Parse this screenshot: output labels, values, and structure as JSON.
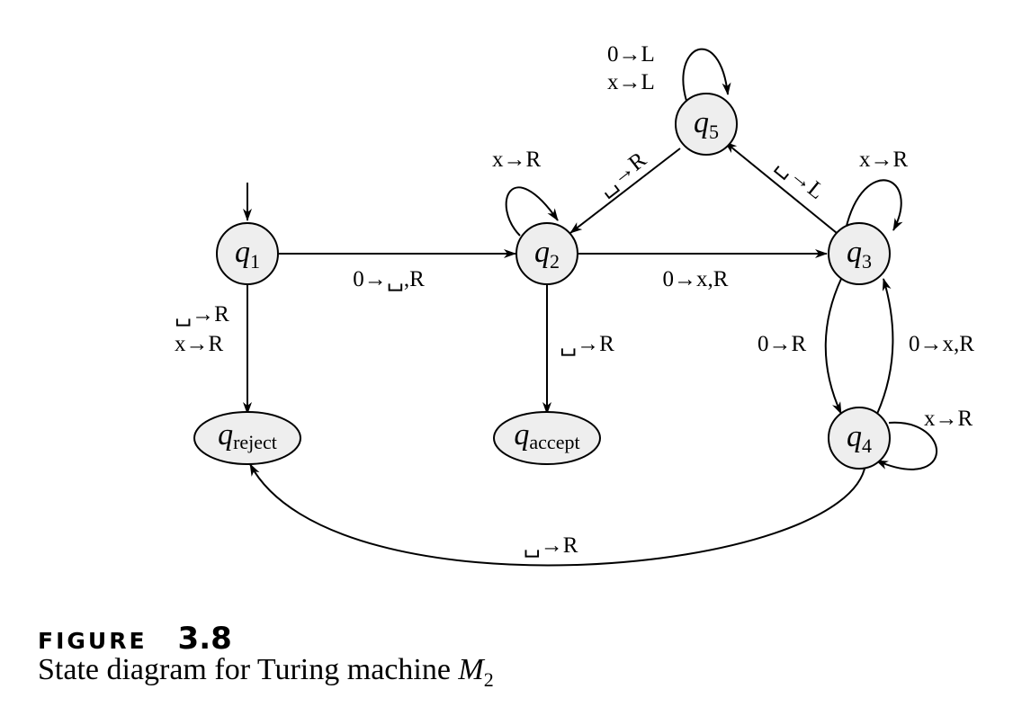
{
  "states": {
    "q1": {
      "name": "q",
      "sub": "1"
    },
    "q2": {
      "name": "q",
      "sub": "2"
    },
    "q3": {
      "name": "q",
      "sub": "3"
    },
    "q4": {
      "name": "q",
      "sub": "4"
    },
    "q5": {
      "name": "q",
      "sub": "5"
    },
    "qreject": {
      "name": "q",
      "sub": "reject"
    },
    "qaccept": {
      "name": "q",
      "sub": "accept"
    }
  },
  "labels": {
    "q5_loop": [
      "0→L",
      "x→L"
    ],
    "q2_loop": [
      "x→R"
    ],
    "q3_loop": [
      "x→R"
    ],
    "q4_loop": [
      "x→R"
    ],
    "q5_q2": "␣→R",
    "q3_q5": "␣→L",
    "q1_q2": "0→␣,R",
    "q2_q3": "0→x,R",
    "q1_reject": [
      "␣→R",
      "x→R"
    ],
    "q2_accept": "␣→R",
    "q3_q4": "0→R",
    "q4_q3": "0→x,R",
    "q4_reject": "␣→R"
  },
  "caption": {
    "figure_word": "FIGURE",
    "figure_number": "3.8",
    "text": "State diagram for Turing machine ",
    "machine": "M",
    "machine_sub": "2"
  }
}
